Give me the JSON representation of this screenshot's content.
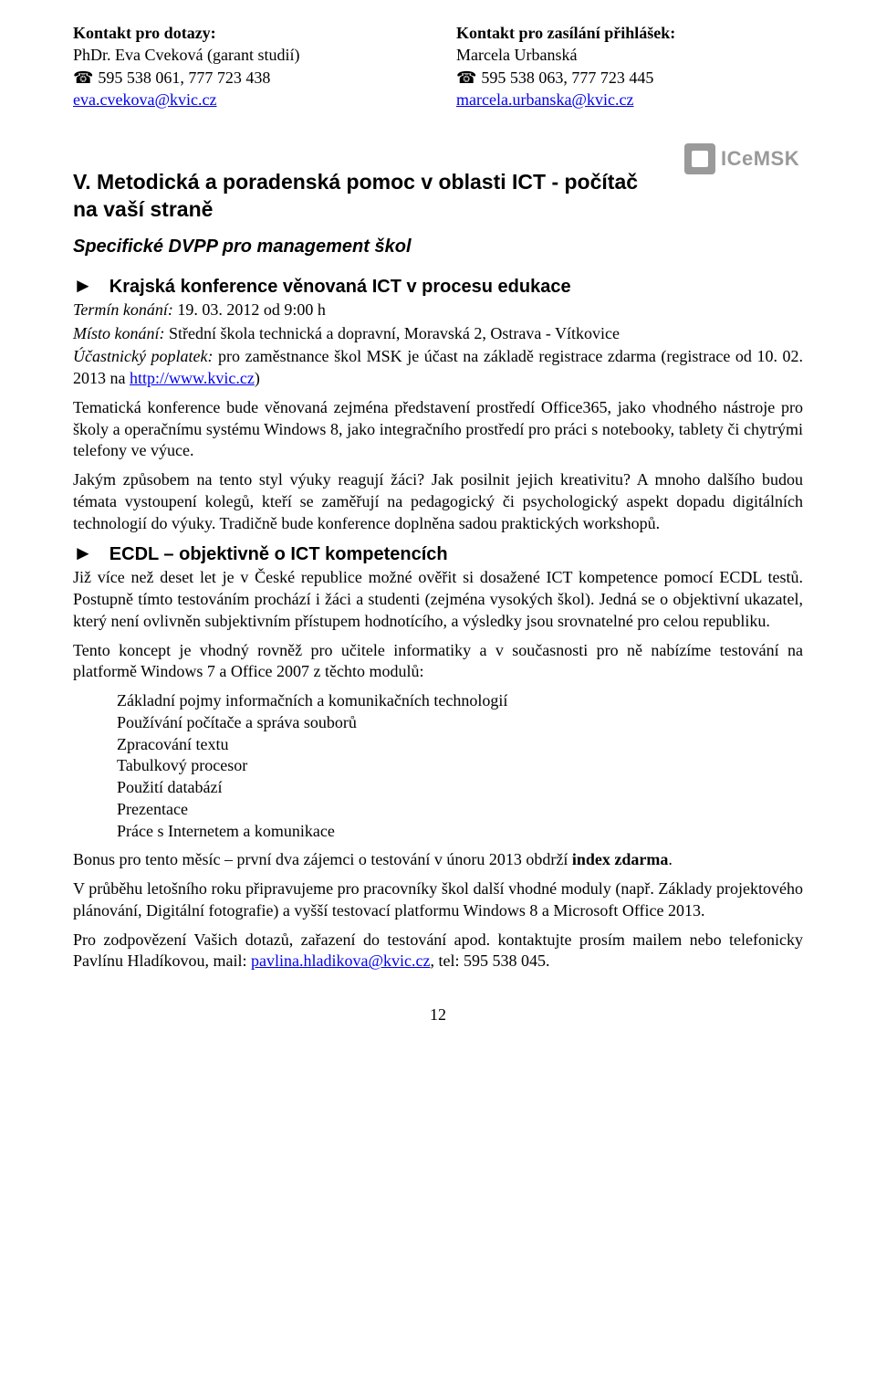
{
  "contacts": {
    "left": {
      "heading": "Kontakt pro dotazy:",
      "name": "PhDr. Eva Cveková (garant studií)",
      "phone_prefix": "☎ ",
      "phone": "595 538 061, 777 723 438",
      "email": "eva.cvekova@kvic.cz"
    },
    "right": {
      "heading": "Kontakt pro zasílání přihlášek:",
      "name": "Marcela Urbanská",
      "phone_prefix": "☎ ",
      "phone": "595 538 063, 777 723 445",
      "email": "marcela.urbanska@kvic.cz"
    }
  },
  "section_v": {
    "title": "V. Metodická a poradenská pomoc v oblasti ICT - počítač na vaší straně",
    "subtitle": "Specifické DVPP pro management škol",
    "logo_text": "ICeMSK"
  },
  "conf": {
    "marker": "►",
    "title": "Krajská konference věnovaná ICT v procesu edukace",
    "term_label": "Termín konání:",
    "term": " 19. 03. 2012 od 9:00 h",
    "place_label": "Místo konání:",
    "place": " Střední škola technická a dopravní, Moravská 2, Ostrava - Vítkovice",
    "fee_label": "Účastnický poplatek:",
    "fee_pre": " pro zaměstnance škol MSK je účast na základě registrace zdarma (registrace od 10. 02. 2013 na ",
    "fee_link": "http://www.kvic.cz",
    "fee_post": ")",
    "p1": "Tematická konference bude věnovaná zejména představení prostředí Office365, jako vhodného nástroje pro školy a operačnímu systému Windows 8, jako integračního prostředí pro práci s notebooky, tablety či chytrými telefony ve výuce.",
    "p2": "Jakým způsobem na tento styl výuky reagují žáci? Jak posilnit jejich kreativitu? A mnoho dalšího budou témata vystoupení kolegů, kteří se zaměřují na pedagogický či psychologický aspekt dopadu digitálních technologií do výuky. Tradičně bude konference doplněna sadou praktických workshopů."
  },
  "ecdl": {
    "marker": "►",
    "title": "ECDL – objektivně o ICT kompetencích",
    "p1": "Již více než deset let je v České republice možné ověřit si dosažené ICT kompetence pomocí ECDL testů. Postupně tímto testováním prochází i žáci a studenti (zejména vysokých škol). Jedná se o objektivní ukazatel, který není ovlivněn subjektivním přístupem hodnotícího, a výsledky jsou srovnatelné pro celou republiku.",
    "p2": "Tento koncept je vhodný rovněž pro učitele informatiky a v současnosti pro ně nabízíme testování na platformě Windows 7 a Office 2007 z těchto modulů:",
    "modules": [
      "Základní pojmy informačních a komunikačních technologií",
      "Používání počítače a správa souborů",
      "Zpracování textu",
      "Tabulkový procesor",
      "Použití databází",
      "Prezentace",
      "Práce s Internetem a komunikace"
    ],
    "bonus_pre": "Bonus pro tento měsíc – první dva zájemci o testování v únoru 2013 obdrží ",
    "bonus_bold": "index zdarma",
    "bonus_post": ".",
    "p4": "V průběhu letošního roku připravujeme pro pracovníky škol další vhodné moduly (např. Základy projektového plánování, Digitální fotografie) a vyšší testovací platformu Windows 8 a Microsoft Office 2013.",
    "p5_pre": "Pro zodpovězení Vašich dotazů, zařazení do testování apod. kontaktujte prosím mailem nebo telefonicky Pavlínu Hladíkovou, mail: ",
    "p5_link": "pavlina.hladikova@kvic.cz",
    "p5_post": ", tel: 595 538 045."
  },
  "page_number": "12"
}
